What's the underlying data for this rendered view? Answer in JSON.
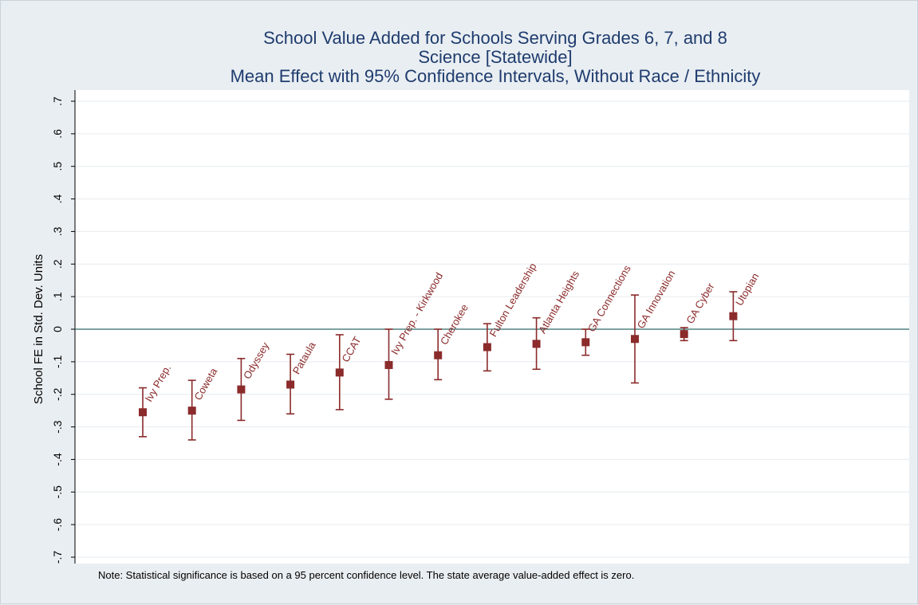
{
  "chart_data": {
    "type": "scatter",
    "title": "School Value Added for Schools Serving Grades 6, 7, and 8",
    "subtitle": "Science [Statewide]",
    "subtitle2": "Mean Effect with 95% Confidence Intervals, Without Race / Ethnicity",
    "xlabel": "",
    "ylabel": "School FE in Std. Dev. Units",
    "ylim": [
      -0.7,
      0.7
    ],
    "yticks": [
      {
        "v": 0.7,
        "label": ".7"
      },
      {
        "v": 0.6,
        "label": ".6"
      },
      {
        "v": 0.5,
        "label": ".5"
      },
      {
        "v": 0.4,
        "label": ".4"
      },
      {
        "v": 0.3,
        "label": ".3"
      },
      {
        "v": 0.2,
        "label": ".2"
      },
      {
        "v": 0.1,
        "label": ".1"
      },
      {
        "v": 0.0,
        "label": "0"
      },
      {
        "v": -0.1,
        "label": "-.1"
      },
      {
        "v": -0.2,
        "label": "-.2"
      },
      {
        "v": -0.3,
        "label": "-.3"
      },
      {
        "v": -0.4,
        "label": "-.4"
      },
      {
        "v": -0.5,
        "label": "-.5"
      },
      {
        "v": -0.6,
        "label": "-.6"
      },
      {
        "v": -0.7,
        "label": "-.7"
      }
    ],
    "grid": true,
    "reference_line": 0,
    "points": [
      {
        "label": "Ivy Prep.",
        "mean": -0.255,
        "lo": -0.33,
        "hi": -0.18
      },
      {
        "label": "Coweta",
        "mean": -0.25,
        "lo": -0.34,
        "hi": -0.157
      },
      {
        "label": "Odyssey",
        "mean": -0.185,
        "lo": -0.28,
        "hi": -0.09
      },
      {
        "label": "Pataula",
        "mean": -0.17,
        "lo": -0.26,
        "hi": -0.077
      },
      {
        "label": "CCAT",
        "mean": -0.133,
        "lo": -0.247,
        "hi": -0.017
      },
      {
        "label": "Ivy Prep. - Kirkwood",
        "mean": -0.11,
        "lo": -0.215,
        "hi": 0.0
      },
      {
        "label": "Cherokee",
        "mean": -0.08,
        "lo": -0.155,
        "hi": 0.0
      },
      {
        "label": "Fulton Leadership",
        "mean": -0.055,
        "lo": -0.128,
        "hi": 0.017
      },
      {
        "label": "Atlanta Heights",
        "mean": -0.045,
        "lo": -0.123,
        "hi": 0.035
      },
      {
        "label": "GA Connections",
        "mean": -0.04,
        "lo": -0.08,
        "hi": 0.0
      },
      {
        "label": "GA Innovation",
        "mean": -0.03,
        "lo": -0.165,
        "hi": 0.105
      },
      {
        "label": "GA Cyber",
        "mean": -0.015,
        "lo": -0.035,
        "hi": 0.005
      },
      {
        "label": "Utopian",
        "mean": 0.04,
        "lo": -0.035,
        "hi": 0.115
      }
    ]
  },
  "note": "Note: Statistical significance is based on a 95 percent confidence level. The state average value-added effect is zero.",
  "colors": {
    "background": "#e9eef2",
    "plot_background": "#ffffff",
    "title": "#1f3c6e",
    "marker": "#8b2b2b",
    "gridline": "#e6ebef",
    "reference_line": "#2e6b68"
  }
}
